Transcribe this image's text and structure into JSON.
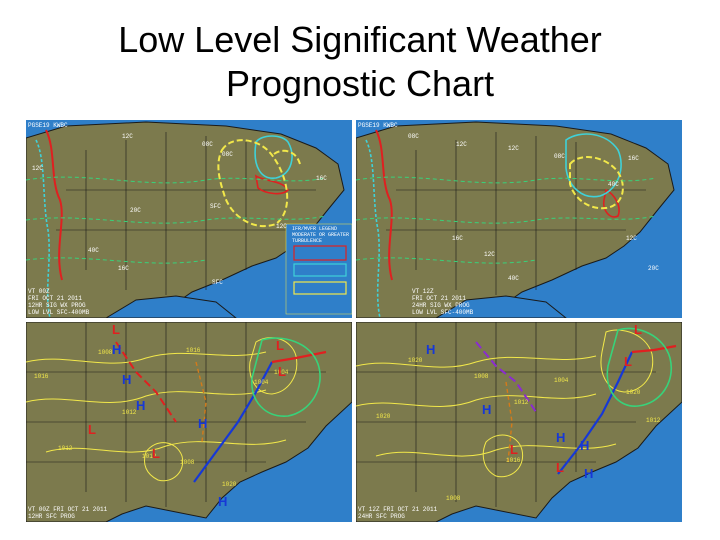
{
  "title": {
    "line1": "Low Level Significant Weather",
    "line2": "Prognostic Chart"
  },
  "colors": {
    "ocean": "#2f7fc9",
    "land": "#7c7a4d",
    "ifr_contour": "#e02020",
    "mvfr_contour": "#3fd1d8",
    "turbulence": "#f2e84a",
    "freezing_level": "#38d27a",
    "high_pressure": "#1638d6",
    "low_pressure": "#e02020"
  },
  "panels": {
    "sigwx_12hr": {
      "id_label": "PGSE19 KWBC",
      "valid_label": "VT 00Z\nFRI OCT 21 2011\n12HR SIG WX PROG\nLOW LVL SFC-400MB",
      "freezing_levels": [
        "12C",
        "08C",
        "08C",
        "12C",
        "16C",
        "SFC",
        "20C",
        "12C",
        "40C",
        "16C",
        "SFC"
      ],
      "legend_text": "IFR/MVFR LEGEND\nMODERATE OR GREATER\nTURBULENCE"
    },
    "sigwx_24hr": {
      "id_label": "PGSE19 KWBC",
      "valid_label": "VT 12Z\nFRI OCT 21 2011\n24HR SIG WX PROG\nLOW LVL SFC-400MB",
      "freezing_levels": [
        "08C",
        "12C",
        "12C",
        "08C",
        "16C",
        "40C",
        "16C",
        "12C",
        "40C",
        "20C",
        "12C"
      ]
    },
    "sfc_12hr": {
      "valid_label": "VT 00Z FRI OCT 21 2011\n12HR SFC PROG",
      "isobars": [
        "1008",
        "1016",
        "1012",
        "1004",
        "1012",
        "1008",
        "1004",
        "1016",
        "1012",
        "1020"
      ],
      "highs": [
        "H",
        "H",
        "H",
        "H",
        "H"
      ],
      "lows": [
        "L",
        "L",
        "L",
        "L",
        "L"
      ]
    },
    "sfc_24hr": {
      "valid_label": "VT 12Z FRI OCT 21 2011\n24HR SFC PROG",
      "isobars": [
        "1020",
        "1008",
        "1012",
        "1004",
        "1020",
        "1012",
        "1016",
        "1020",
        "1008"
      ],
      "highs": [
        "H",
        "H",
        "H",
        "H",
        "H"
      ],
      "lows": [
        "L",
        "L",
        "L",
        "L"
      ]
    }
  }
}
